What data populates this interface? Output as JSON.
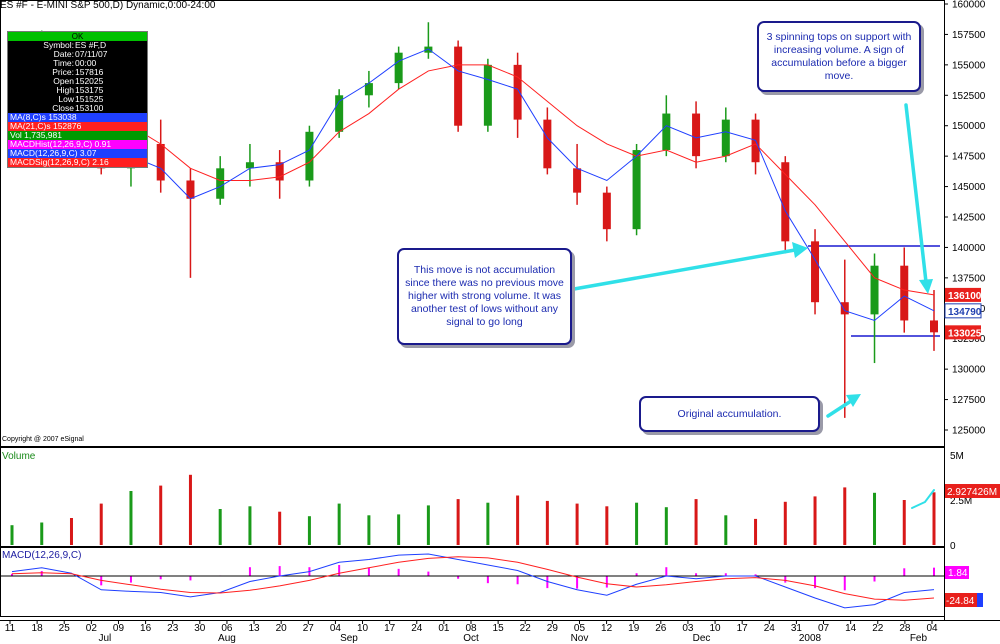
{
  "header": {
    "title": "ES #F - E-MINI S&P 500,D) Dynamic,0:00-24:00"
  },
  "copyright": "Copyright @ 2007 eSignal",
  "info_panel": {
    "ok_label": "OK",
    "rows": [
      {
        "label": "Symbol:",
        "value": "ES #F,D"
      },
      {
        "label": "Date:",
        "value": "07/11/07"
      },
      {
        "label": "Time:",
        "value": "00:00"
      },
      {
        "label": "Price:",
        "value": "157816"
      },
      {
        "label": "Open",
        "value": "152025"
      },
      {
        "label": "High",
        "value": "153175"
      },
      {
        "label": "Low",
        "value": "151525"
      },
      {
        "label": "Close",
        "value": "153100"
      }
    ],
    "indicators": [
      {
        "text": "MA(8,C)s 153038",
        "bg": "#1f3fff"
      },
      {
        "text": "MA(21,C)s 152876",
        "bg": "#ff2020"
      },
      {
        "text": "Vol 1,735,981",
        "bg": "#009a00"
      },
      {
        "text": "MACDHist(12,26,9,C) 0.91",
        "bg": "#ff00ff"
      },
      {
        "text": "MACD(12,26,9,C) 3.07",
        "bg": "#1f3fff"
      },
      {
        "text": "MACDSig(12,26,9,C) 2.16",
        "bg": "#ff2020"
      }
    ]
  },
  "price_axis": {
    "ticks": [
      "160000",
      "157500",
      "155000",
      "152500",
      "150000",
      "147500",
      "145000",
      "142500",
      "140000",
      "137500",
      "135000",
      "132500",
      "130000",
      "127500",
      "125000"
    ],
    "badges": [
      {
        "text": "136100",
        "value": 136100,
        "bg": "#e8201c",
        "fg": "#ffffff"
      },
      {
        "text": "134790",
        "value": 134790,
        "bg": "#ffffff",
        "fg": "#1f3fb0"
      },
      {
        "text": "133025",
        "value": 133025,
        "bg": "#e8201c",
        "fg": "#ffffff"
      }
    ]
  },
  "volume_panel": {
    "label": "Volume",
    "ticks": [
      "5M",
      "2.5M",
      "0"
    ],
    "badge": "2.927426M"
  },
  "macd_panel": {
    "label": "MACD(12,26,9,C)",
    "badge_upper": "1.84",
    "badge_lower": "-24.84"
  },
  "date_axis": {
    "days": [
      "11",
      "18",
      "25",
      "02",
      "09",
      "16",
      "23",
      "30",
      "06",
      "13",
      "20",
      "27",
      "04",
      "10",
      "17",
      "24",
      "01",
      "08",
      "15",
      "22",
      "29",
      "05",
      "12",
      "19",
      "26",
      "03",
      "10",
      "17",
      "24",
      "31",
      "07",
      "14",
      "22",
      "28",
      "04"
    ],
    "months": [
      "Jul",
      "Aug",
      "Sep",
      "Oct",
      "Nov",
      "Dec",
      "2008",
      "Feb"
    ]
  },
  "annotations": {
    "top_right": "3 spinning tops on support with increasing volume. A sign of accumulation before a bigger move.",
    "middle": "This move is not accumulation since there was no previous move higher with strong volume. It was another test of lows without any signal to go long",
    "bottom": "Original accumulation."
  },
  "colors": {
    "up": "#1a9a1a",
    "down": "#d81818",
    "ma8": "#1f3fff",
    "ma21": "#ff2020",
    "hline": "#1a1ad0",
    "arrow": "#30e0e8",
    "grid": "#000000"
  },
  "chart_data": {
    "type": "candlestick",
    "title": "ES #F - E-MINI S&P 500,D) Dynamic,0:00-24:00",
    "ylim": [
      124000,
      160000
    ],
    "x": [
      "2007-07-06",
      "2007-07-13",
      "2007-07-20",
      "2007-07-27",
      "2007-08-03",
      "2007-08-10",
      "2007-08-17",
      "2007-08-24",
      "2007-08-31",
      "2007-09-07",
      "2007-09-14",
      "2007-09-21",
      "2007-09-28",
      "2007-10-05",
      "2007-10-12",
      "2007-10-19",
      "2007-10-26",
      "2007-11-02",
      "2007-11-09",
      "2007-11-16",
      "2007-11-23",
      "2007-11-30",
      "2007-12-07",
      "2007-12-14",
      "2007-12-21",
      "2007-12-28",
      "2008-01-04",
      "2008-01-11",
      "2008-01-18",
      "2008-01-25",
      "2008-02-01",
      "2008-02-06"
    ],
    "series": [
      {
        "name": "MA(8,C)s",
        "values": [
          155000,
          156000,
          154000,
          148000,
          147500,
          146500,
          144000,
          145000,
          146500,
          146800,
          148000,
          152000,
          153500,
          155300,
          156300,
          154500,
          153800,
          153000,
          149000,
          146500,
          145500,
          147500,
          150000,
          149000,
          149500,
          148800,
          143000,
          139000,
          134800,
          134000,
          136000,
          134790
        ]
      },
      {
        "name": "MA(21,C)s",
        "values": [
          153000,
          155000,
          155500,
          151500,
          150000,
          148500,
          146500,
          145500,
          145500,
          145800,
          147000,
          149500,
          151000,
          153000,
          154500,
          155000,
          155000,
          154000,
          152000,
          150000,
          148500,
          147500,
          148000,
          147000,
          147500,
          148500,
          146000,
          143500,
          140500,
          137500,
          136500,
          136100
        ]
      },
      {
        "name": "Volume",
        "values": [
          1100000,
          1250000,
          1500000,
          2300000,
          3000000,
          3300000,
          3900000,
          2000000,
          2150000,
          1850000,
          1600000,
          2300000,
          1650000,
          1700000,
          2200000,
          2550000,
          2350000,
          2750000,
          2450000,
          2300000,
          2150000,
          2350000,
          2100000,
          2550000,
          1650000,
          1450000,
          2400000,
          2700000,
          3200000,
          2900000,
          2500000,
          2927426
        ]
      },
      {
        "name": "MACD(12,26,9,C)",
        "values": [
          8,
          15,
          5,
          -25,
          -28,
          -30,
          -38,
          -30,
          -10,
          0,
          8,
          25,
          30,
          38,
          40,
          30,
          20,
          10,
          -10,
          -25,
          -35,
          -15,
          0,
          -5,
          0,
          0,
          -20,
          -40,
          -58,
          -52,
          -30,
          -24.84
        ]
      },
      {
        "name": "MACDSig(12,26,9,C)",
        "values": [
          4,
          6,
          4,
          -8,
          -16,
          -24,
          -30,
          -31,
          -26,
          -18,
          -8,
          5,
          15,
          25,
          32,
          35,
          33,
          25,
          12,
          -2,
          -14,
          -20,
          -16,
          -10,
          -5,
          -3,
          -8,
          -18,
          -32,
          -42,
          -44,
          -40
        ]
      }
    ],
    "candles": [
      [
        153500,
        156000,
        152500,
        155000
      ],
      [
        155000,
        157816,
        153500,
        156500
      ],
      [
        156500,
        157000,
        150500,
        151500
      ],
      [
        151500,
        152500,
        146000,
        146500
      ],
      [
        146500,
        150000,
        145000,
        148500
      ],
      [
        148500,
        150500,
        144500,
        145500
      ],
      [
        145500,
        146500,
        137500,
        144000
      ],
      [
        144000,
        147500,
        143500,
        146500
      ],
      [
        146500,
        148500,
        145000,
        147000
      ],
      [
        147000,
        148000,
        144000,
        145500
      ],
      [
        145500,
        150000,
        145000,
        149500
      ],
      [
        149500,
        153000,
        149000,
        152500
      ],
      [
        152500,
        154500,
        151500,
        153500
      ],
      [
        153500,
        156500,
        153000,
        156000
      ],
      [
        156000,
        158500,
        155500,
        156500
      ],
      [
        156500,
        157000,
        149500,
        150000
      ],
      [
        150000,
        155500,
        149500,
        155000
      ],
      [
        155000,
        156000,
        149000,
        150500
      ],
      [
        150500,
        151500,
        146000,
        146500
      ],
      [
        146500,
        148500,
        143500,
        144500
      ],
      [
        144500,
        145000,
        140500,
        141500
      ],
      [
        141500,
        148500,
        141000,
        148000
      ],
      [
        148000,
        152500,
        147500,
        151000
      ],
      [
        151000,
        152000,
        146500,
        147500
      ],
      [
        147500,
        151500,
        147000,
        150500
      ],
      [
        150500,
        151000,
        146000,
        147000
      ],
      [
        147000,
        147500,
        139500,
        140500
      ],
      [
        140500,
        141500,
        134500,
        135500
      ],
      [
        135500,
        139000,
        126000,
        134500
      ],
      [
        134500,
        139500,
        130500,
        138500
      ],
      [
        138500,
        140000,
        133000,
        134000
      ],
      [
        134000,
        136500,
        131500,
        133025
      ]
    ],
    "support_level": 133000,
    "resistance_level": 140000
  }
}
